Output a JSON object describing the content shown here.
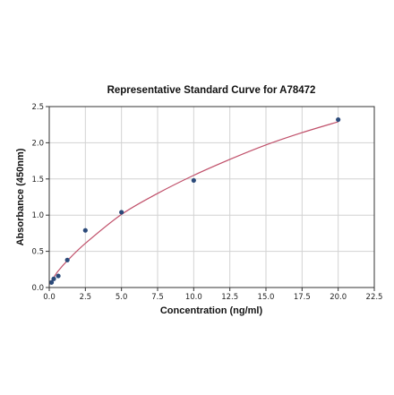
{
  "chart_data": {
    "type": "scatter",
    "title": "Representative Standard Curve for A78472",
    "xlabel": "Concentration (ng/ml)",
    "ylabel": "Absorbance (450nm)",
    "xlim": [
      0,
      22.5
    ],
    "ylim": [
      0,
      2.5
    ],
    "xticks": [
      "0.0",
      "2.5",
      "5.0",
      "7.5",
      "10.0",
      "12.5",
      "15.0",
      "17.5",
      "20.0",
      "22.5"
    ],
    "yticks": [
      "0.0",
      "0.5",
      "1.0",
      "1.5",
      "2.0",
      "2.5"
    ],
    "grid": true,
    "series": [
      {
        "kind": "points",
        "color": "#2b4a7a",
        "x": [
          0.156,
          0.312,
          0.625,
          1.25,
          2.5,
          5.0,
          10.0,
          20.0
        ],
        "y": [
          0.07,
          0.12,
          0.16,
          0.38,
          0.79,
          1.04,
          1.48,
          2.32
        ]
      },
      {
        "kind": "fit-curve",
        "color": "#c0506a",
        "x": [
          0.0,
          0.156,
          0.312,
          0.625,
          1.25,
          2.5,
          5.0,
          7.5,
          10.0,
          12.5,
          15.0,
          17.5,
          20.0
        ],
        "y": [
          0.04,
          0.09,
          0.14,
          0.23,
          0.37,
          0.61,
          1.01,
          1.3,
          1.55,
          1.77,
          1.97,
          2.14,
          2.29
        ]
      }
    ]
  }
}
